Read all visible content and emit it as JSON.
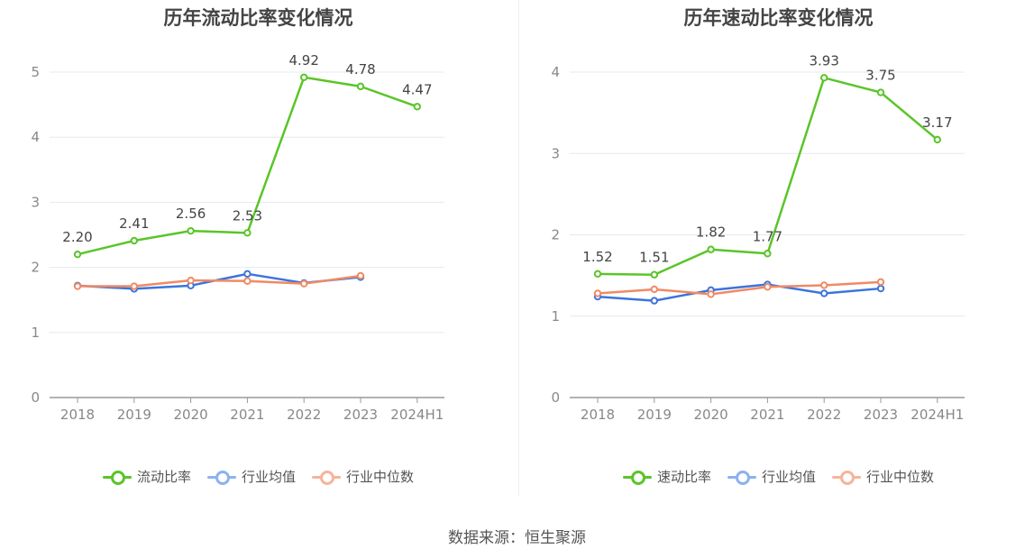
{
  "colors": {
    "main": "#5ac528",
    "avg": "#3c74dc",
    "median": "#f08a64",
    "avg_legend": "#8cb2f0",
    "median_legend": "#f6b49a",
    "grid": "#e4e8f2",
    "axis": "#999999",
    "tick_text": "#888888",
    "label_text": "#444444"
  },
  "source": "数据来源：恒生聚源",
  "chart_data": [
    {
      "type": "line",
      "title": "历年流动比率变化情况",
      "categories": [
        "2018",
        "2019",
        "2020",
        "2021",
        "2022",
        "2023",
        "2024H1"
      ],
      "ylim": [
        0,
        5
      ],
      "yticks": [
        "0",
        "1",
        "2",
        "3",
        "4",
        "5"
      ],
      "grid": true,
      "legend_position": "bottom",
      "series": [
        {
          "name": "流动比率",
          "key": "main",
          "values": [
            2.2,
            2.41,
            2.56,
            2.53,
            4.92,
            4.78,
            4.47
          ],
          "labels": [
            "2.20",
            "2.41",
            "2.56",
            "2.53",
            "4.92",
            "4.78",
            "4.47"
          ]
        },
        {
          "name": "行业均值",
          "key": "avg",
          "values": [
            1.72,
            1.67,
            1.72,
            1.9,
            1.76,
            1.85,
            null
          ]
        },
        {
          "name": "行业中位数",
          "key": "median",
          "values": [
            1.71,
            1.71,
            1.8,
            1.79,
            1.75,
            1.87,
            null
          ]
        }
      ]
    },
    {
      "type": "line",
      "title": "历年速动比率变化情况",
      "categories": [
        "2018",
        "2019",
        "2020",
        "2021",
        "2022",
        "2023",
        "2024H1"
      ],
      "ylim": [
        0,
        4
      ],
      "yticks": [
        "0",
        "1",
        "2",
        "3",
        "4"
      ],
      "grid": true,
      "legend_position": "bottom",
      "series": [
        {
          "name": "速动比率",
          "key": "main",
          "values": [
            1.52,
            1.51,
            1.82,
            1.77,
            3.93,
            3.75,
            3.17
          ],
          "labels": [
            "1.52",
            "1.51",
            "1.82",
            "1.77",
            "3.93",
            "3.75",
            "3.17"
          ]
        },
        {
          "name": "行业均值",
          "key": "avg",
          "values": [
            1.24,
            1.19,
            1.32,
            1.39,
            1.28,
            1.34,
            null
          ]
        },
        {
          "name": "行业中位数",
          "key": "median",
          "values": [
            1.28,
            1.33,
            1.27,
            1.36,
            1.38,
            1.42,
            null
          ]
        }
      ]
    }
  ]
}
